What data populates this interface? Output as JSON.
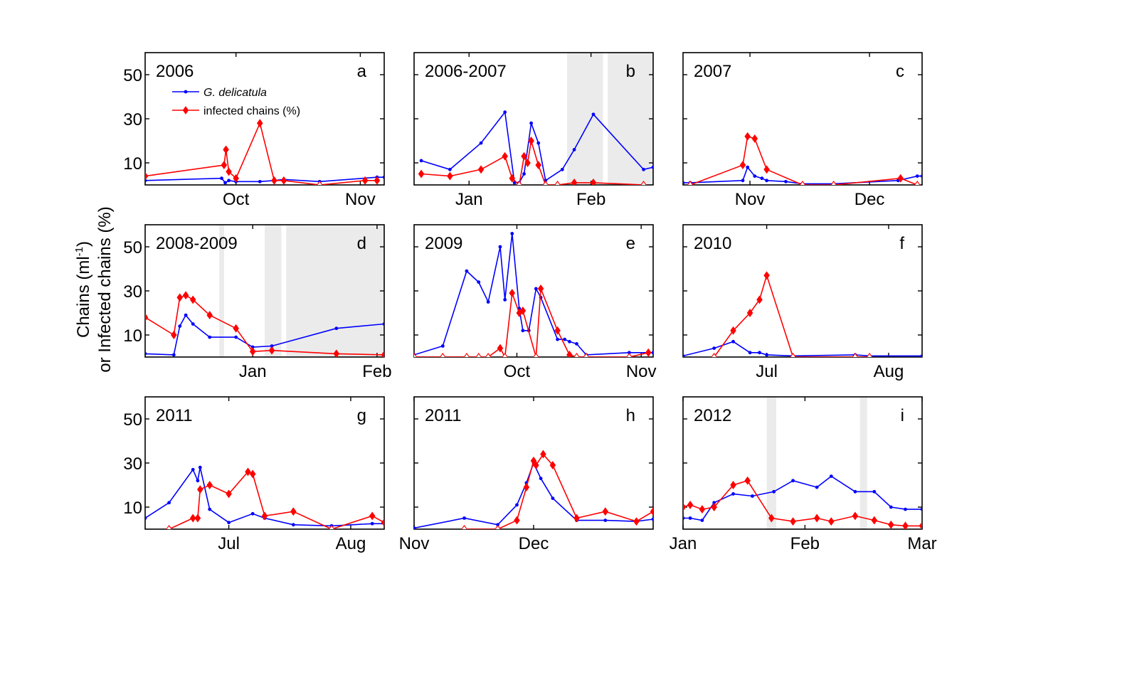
{
  "figure": {
    "ylabel_line1": "Chains (ml",
    "ylabel_sup": "-1",
    "ylabel_line1_end": ")",
    "ylabel_line2": "or Infected chains (%)"
  },
  "colors": {
    "gdelicatula": "#0000ff",
    "infected": "#ff0000",
    "shade": "#ebebeb",
    "axis": "#000000"
  },
  "legend": {
    "gdelicatula_label": "G. delicatula",
    "infected_label": "infected chains (%)"
  },
  "chart_data": [
    {
      "id": "a",
      "type": "line",
      "title": "2006",
      "letter": "a",
      "xlim": [
        0,
        100
      ],
      "ylim": [
        0,
        60
      ],
      "yticks": [
        10,
        30,
        50
      ],
      "xticks": [
        {
          "value": 38,
          "label": "Oct"
        },
        {
          "value": 90,
          "label": "Nov"
        }
      ],
      "shaded": [],
      "series": [
        {
          "name": "G. delicatula",
          "color": "blue",
          "marker": "dot",
          "x": [
            0,
            32,
            33.5,
            35,
            38,
            48,
            54,
            58,
            73,
            97,
            100
          ],
          "y": [
            2,
            3,
            1,
            2,
            1.5,
            1.5,
            2,
            2.5,
            1.5,
            3.5,
            3.5
          ]
        },
        {
          "name": "infected chains (%)",
          "color": "red",
          "marker": "diamond",
          "x": [
            0,
            33,
            33.8,
            35,
            38,
            48,
            54,
            58,
            73,
            92,
            97
          ],
          "y": [
            4,
            9,
            16,
            6,
            3,
            28,
            2,
            2,
            0,
            2,
            2
          ],
          "open": [
            0,
            0,
            0,
            0,
            0,
            0,
            0,
            0,
            1,
            0,
            0
          ]
        }
      ]
    },
    {
      "id": "b",
      "type": "line",
      "title": "2006-2007",
      "letter": "b",
      "xlim": [
        0,
        100
      ],
      "ylim": [
        0,
        60
      ],
      "yticks": [
        10,
        30,
        50
      ],
      "xticks": [
        {
          "value": 23,
          "label": "Jan"
        },
        {
          "value": 74,
          "label": "Feb"
        }
      ],
      "shaded": [
        [
          64,
          79
        ],
        [
          81,
          100
        ]
      ],
      "series": [
        {
          "name": "G. delicatula",
          "color": "blue",
          "marker": "dot",
          "x": [
            3,
            15,
            28,
            38,
            42,
            44,
            46,
            49,
            52,
            55,
            62,
            67,
            75,
            96,
            100
          ],
          "y": [
            11,
            7,
            19,
            33,
            1,
            1,
            5,
            28,
            19,
            2,
            7,
            16,
            32,
            7,
            8
          ]
        },
        {
          "name": "infected chains (%)",
          "color": "red",
          "marker": "diamond",
          "x": [
            3,
            15,
            28,
            38,
            41,
            44,
            46,
            47.5,
            49,
            52,
            55,
            60,
            67,
            75,
            96
          ],
          "y": [
            5,
            4,
            7,
            13,
            3,
            0,
            13,
            10,
            20,
            9,
            0,
            0,
            1,
            1,
            0
          ],
          "open": [
            0,
            0,
            0,
            0,
            0,
            1,
            0,
            0,
            0,
            0,
            1,
            1,
            0,
            0,
            1
          ]
        }
      ]
    },
    {
      "id": "c",
      "type": "line",
      "title": "2007",
      "letter": "c",
      "xlim": [
        0,
        100
      ],
      "ylim": [
        0,
        60
      ],
      "yticks": [
        10,
        30,
        50
      ],
      "xticks": [
        {
          "value": 28,
          "label": "Nov"
        },
        {
          "value": 78,
          "label": "Dec"
        }
      ],
      "shaded": [],
      "series": [
        {
          "name": "G. delicatula",
          "color": "blue",
          "marker": "dot",
          "x": [
            0,
            3,
            25,
            27,
            30,
            33,
            35,
            43,
            50,
            63,
            90,
            98,
            100
          ],
          "y": [
            1,
            1,
            2,
            8,
            4,
            3,
            2,
            1.5,
            0.5,
            0.5,
            2,
            4,
            4
          ]
        },
        {
          "name": "infected chains (%)",
          "color": "red",
          "marker": "diamond",
          "x": [
            3,
            25,
            27,
            30,
            35,
            50,
            63,
            91,
            98
          ],
          "y": [
            0,
            9,
            22,
            21,
            7,
            0,
            0,
            3,
            0
          ],
          "open": [
            1,
            0,
            0,
            0,
            0,
            1,
            1,
            0,
            1
          ]
        }
      ]
    },
    {
      "id": "d",
      "type": "line",
      "title": "2008-2009",
      "letter": "d",
      "xlim": [
        0,
        100
      ],
      "ylim": [
        0,
        60
      ],
      "yticks": [
        10,
        30,
        50
      ],
      "xticks": [
        {
          "value": 45,
          "label": "Jan"
        },
        {
          "value": 97,
          "label": "Feb"
        }
      ],
      "shaded": [
        [
          31,
          33
        ],
        [
          50,
          57
        ],
        [
          59,
          100
        ]
      ],
      "series": [
        {
          "name": "G. delicatula",
          "color": "blue",
          "marker": "dot",
          "x": [
            0,
            12,
            14.5,
            17,
            20,
            27,
            38,
            45,
            53,
            80,
            100
          ],
          "y": [
            1.5,
            1,
            14,
            19,
            15,
            9,
            9,
            4.5,
            5,
            13,
            15
          ]
        },
        {
          "name": "infected chains (%)",
          "color": "red",
          "marker": "diamond",
          "x": [
            0,
            12,
            14.5,
            17,
            20,
            27,
            38,
            45,
            53,
            80,
            100
          ],
          "y": [
            18,
            10,
            27,
            28,
            26,
            19,
            13,
            2.5,
            3,
            1.5,
            1
          ],
          "open": [
            0,
            0,
            0,
            0,
            0,
            0,
            0,
            0,
            0,
            0,
            0
          ]
        }
      ]
    },
    {
      "id": "e",
      "type": "line",
      "title": "2009",
      "letter": "e",
      "xlim": [
        0,
        100
      ],
      "ylim": [
        0,
        60
      ],
      "yticks": [
        10,
        30,
        50
      ],
      "xticks": [
        {
          "value": 43,
          "label": "Oct"
        },
        {
          "value": 95,
          "label": "Nov"
        }
      ],
      "shaded": [],
      "series": [
        {
          "name": "G. delicatula",
          "color": "blue",
          "marker": "dot",
          "x": [
            0,
            12,
            22,
            27,
            31,
            36,
            38,
            41,
            44,
            45.5,
            48,
            51,
            53,
            60,
            63,
            65,
            68,
            72,
            90,
            100
          ],
          "y": [
            1,
            5,
            39,
            34,
            25,
            50,
            26,
            56,
            22,
            12,
            12,
            31,
            27,
            8,
            8,
            7,
            6,
            1,
            2,
            2
          ]
        },
        {
          "name": "infected chains (%)",
          "color": "red",
          "marker": "diamond",
          "x": [
            0,
            12,
            22,
            27,
            31,
            36,
            38,
            41,
            44,
            45.5,
            51,
            53,
            60,
            65,
            68,
            72,
            90,
            98
          ],
          "y": [
            0,
            0,
            0,
            0,
            0,
            4,
            0,
            29,
            20,
            21,
            0,
            31,
            12,
            1,
            0,
            0,
            0,
            2
          ],
          "open": [
            1,
            1,
            1,
            1,
            1,
            0,
            1,
            0,
            0,
            0,
            1,
            0,
            0,
            0,
            1,
            1,
            1,
            0
          ]
        }
      ]
    },
    {
      "id": "f",
      "type": "line",
      "title": "2010",
      "letter": "f",
      "xlim": [
        0,
        100
      ],
      "ylim": [
        0,
        60
      ],
      "yticks": [
        10,
        30,
        50
      ],
      "xticks": [
        {
          "value": 35,
          "label": "Jul"
        },
        {
          "value": 86,
          "label": "Aug"
        }
      ],
      "shaded": [],
      "series": [
        {
          "name": "G. delicatula",
          "color": "blue",
          "marker": "dot",
          "x": [
            0,
            13,
            21,
            28,
            32,
            35,
            46,
            72,
            78,
            100
          ],
          "y": [
            0.5,
            4,
            7,
            2,
            2,
            1,
            0.5,
            1,
            0.5,
            0.5
          ]
        },
        {
          "name": "infected chains (%)",
          "color": "red",
          "marker": "diamond",
          "x": [
            13,
            21,
            28,
            32,
            35,
            46,
            72,
            78
          ],
          "y": [
            0,
            12,
            20,
            26,
            37,
            0,
            0,
            0
          ],
          "open": [
            1,
            0,
            0,
            0,
            0,
            1,
            1,
            1
          ]
        }
      ]
    },
    {
      "id": "g",
      "type": "line",
      "title": "2011",
      "letter": "g",
      "xlim": [
        0,
        100
      ],
      "ylim": [
        0,
        60
      ],
      "yticks": [
        10,
        30,
        50
      ],
      "xticks": [
        {
          "value": 35,
          "label": "Jul"
        },
        {
          "value": 86,
          "label": "Aug"
        }
      ],
      "shaded": [],
      "series": [
        {
          "name": "G. delicatula",
          "color": "blue",
          "marker": "dot",
          "x": [
            0,
            10,
            20,
            22,
            23,
            27,
            35,
            45,
            50,
            62,
            78,
            95,
            100
          ],
          "y": [
            5,
            12,
            27,
            22,
            28,
            9,
            3,
            7,
            5,
            2,
            1.5,
            2.5,
            2.5
          ]
        },
        {
          "name": "infected chains (%)",
          "color": "red",
          "marker": "diamond",
          "x": [
            10,
            20,
            22,
            23,
            27,
            35,
            43,
            45,
            50,
            62,
            78,
            95,
            100
          ],
          "y": [
            0,
            5,
            5,
            18,
            20,
            16,
            26,
            25,
            6,
            8,
            0,
            6,
            3
          ],
          "open": [
            1,
            0,
            0,
            0,
            0,
            0,
            0,
            0,
            0,
            0,
            1,
            0,
            0
          ]
        }
      ]
    },
    {
      "id": "h",
      "type": "line",
      "title": "2011",
      "letter": "h",
      "xlim": [
        0,
        100
      ],
      "ylim": [
        0,
        60
      ],
      "yticks": [
        10,
        30,
        50
      ],
      "xticks": [
        {
          "value": 0,
          "label": "Nov"
        },
        {
          "value": 50,
          "label": "Dec"
        }
      ],
      "shaded": [],
      "series": [
        {
          "name": "G. delicatula",
          "color": "blue",
          "marker": "dot",
          "x": [
            0,
            21,
            35,
            43,
            47,
            50,
            53,
            58,
            68,
            80,
            93,
            100
          ],
          "y": [
            0.5,
            5,
            2,
            11,
            21,
            30,
            23,
            14,
            4,
            4,
            3.5,
            4.5
          ]
        },
        {
          "name": "infected chains (%)",
          "color": "red",
          "marker": "diamond",
          "x": [
            21,
            35,
            43,
            47,
            50,
            51,
            54,
            58,
            68,
            80,
            93,
            100
          ],
          "y": [
            0,
            0,
            4,
            19,
            31,
            29,
            34,
            29,
            5,
            8,
            3.5,
            8
          ],
          "open": [
            1,
            1,
            0,
            0,
            0,
            0,
            0,
            0,
            0,
            0,
            0,
            0
          ]
        }
      ]
    },
    {
      "id": "i",
      "type": "line",
      "title": "2012",
      "letter": "i",
      "xlim": [
        0,
        100
      ],
      "ylim": [
        0,
        60
      ],
      "yticks": [
        10,
        30,
        50
      ],
      "xticks": [
        {
          "value": 0,
          "label": "Jan"
        },
        {
          "value": 51,
          "label": "Feb"
        },
        {
          "value": 100,
          "label": "Mar"
        }
      ],
      "shaded": [
        [
          35,
          39
        ],
        [
          74,
          77
        ]
      ],
      "series": [
        {
          "name": "G. delicatula",
          "color": "blue",
          "marker": "dot",
          "x": [
            0,
            3,
            8,
            13,
            21,
            29,
            38,
            46,
            56,
            62,
            72,
            80,
            87,
            93,
            100
          ],
          "y": [
            5,
            5,
            4,
            12,
            16,
            15,
            17,
            22,
            19,
            24,
            17,
            17,
            10,
            9,
            9
          ]
        },
        {
          "name": "infected chains (%)",
          "color": "red",
          "marker": "diamond",
          "x": [
            0,
            3,
            8,
            13,
            21,
            27,
            37,
            46,
            56,
            62,
            72,
            80,
            87,
            93,
            100
          ],
          "y": [
            10,
            11,
            9,
            10,
            20,
            22,
            5,
            3.5,
            5,
            3.5,
            6,
            4,
            2,
            1.5,
            1.5
          ],
          "open": [
            0,
            0,
            0,
            0,
            0,
            0,
            0,
            0,
            0,
            0,
            0,
            0,
            0,
            0,
            0
          ]
        }
      ]
    }
  ]
}
